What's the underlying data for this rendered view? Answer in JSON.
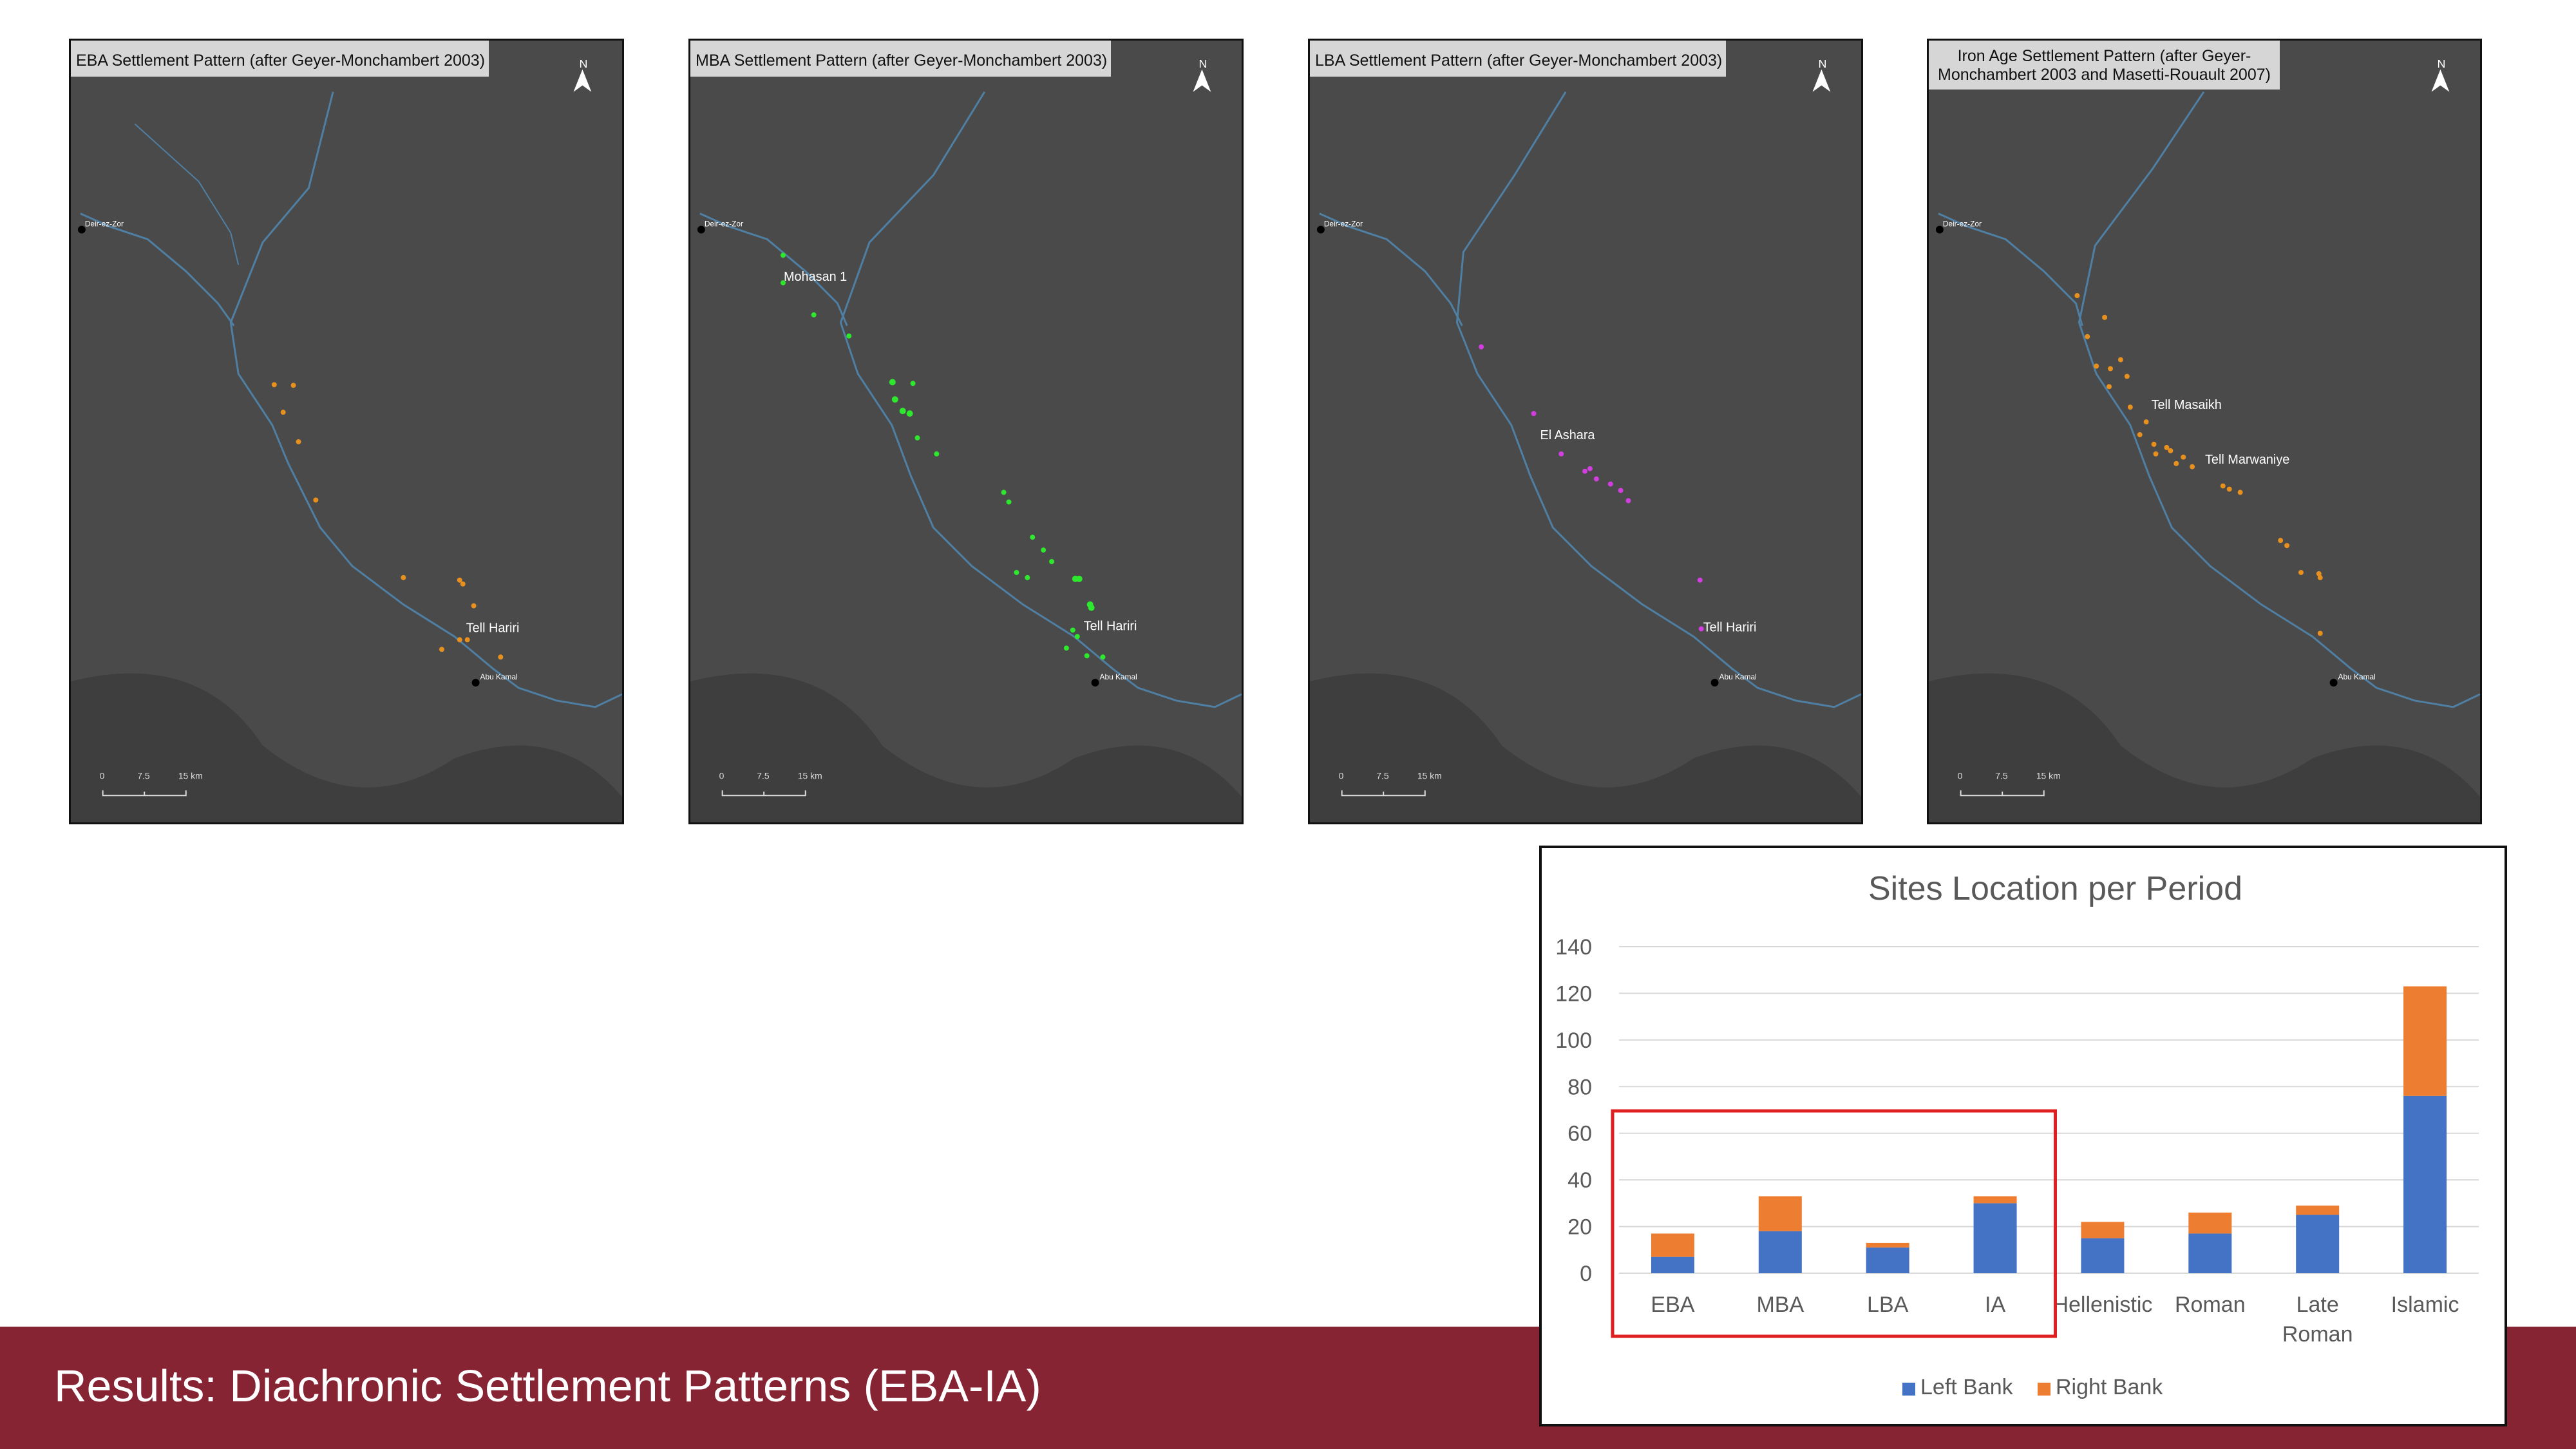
{
  "maps": [
    {
      "title": "EBA Settlement Pattern (after Geyer-Monchambert 2003)",
      "north": "N",
      "scale": [
        "0",
        "7.5",
        "15 km"
      ],
      "towns": [
        "Deir-ez-Zor",
        "Abu Kamal"
      ],
      "labels": [
        "Tell Hariri"
      ],
      "dot_color": "#e8901e"
    },
    {
      "title": "MBA Settlement Pattern (after Geyer-Monchambert 2003)",
      "north": "N",
      "scale": [
        "0",
        "7.5",
        "15 km"
      ],
      "towns": [
        "Deir-ez-Zor",
        "Abu Kamal"
      ],
      "labels": [
        "Mohasan 1",
        "Tell Hariri"
      ],
      "dot_color": "#2ee82e"
    },
    {
      "title": "LBA Settlement Pattern (after Geyer-Monchambert 2003)",
      "north": "N",
      "scale": [
        "0",
        "7.5",
        "15 km"
      ],
      "towns": [
        "Deir-ez-Zor",
        "Abu Kamal"
      ],
      "labels": [
        "El Ashara",
        "Tell Hariri"
      ],
      "dot_color": "#d23ee0"
    },
    {
      "title_lines": [
        "Iron Age Settlement Pattern (after Geyer-",
        "Monchambert 2003 and Masetti-Rouault 2007)"
      ],
      "north": "N",
      "scale": [
        "0",
        "7.5",
        "15 km"
      ],
      "towns": [
        "Deir-ez-Zor",
        "Abu Kamal"
      ],
      "labels": [
        "Tell Masaikh",
        "Tell Marwaniye"
      ],
      "dot_color": "#e8901e"
    }
  ],
  "footer": {
    "title": "Results: Diachronic Settlement Patterns (EBA-IA)"
  },
  "chart_data": {
    "type": "bar",
    "stacked": true,
    "title": "Sites Location per Period",
    "categories": [
      [
        "EBA"
      ],
      [
        "MBA"
      ],
      [
        "LBA"
      ],
      [
        "IA"
      ],
      [
        "Hellenistic"
      ],
      [
        "Roman"
      ],
      [
        "Late",
        "Roman"
      ],
      [
        "Islamic"
      ]
    ],
    "series": [
      {
        "name": "Left Bank",
        "color": "#4472c4",
        "values": [
          7,
          18,
          11,
          30,
          15,
          17,
          25,
          76
        ]
      },
      {
        "name": "Right Bank",
        "color": "#ed7d31",
        "values": [
          10,
          15,
          2,
          3,
          7,
          9,
          4,
          47
        ]
      }
    ],
    "ylim": [
      0,
      140
    ],
    "yticks": [
      0,
      20,
      40,
      60,
      80,
      100,
      120,
      140
    ],
    "grid": true,
    "legend": "bottom",
    "highlight": {
      "categories": [
        "EBA",
        "MBA",
        "LBA",
        "IA"
      ],
      "color": "#e02020"
    }
  }
}
